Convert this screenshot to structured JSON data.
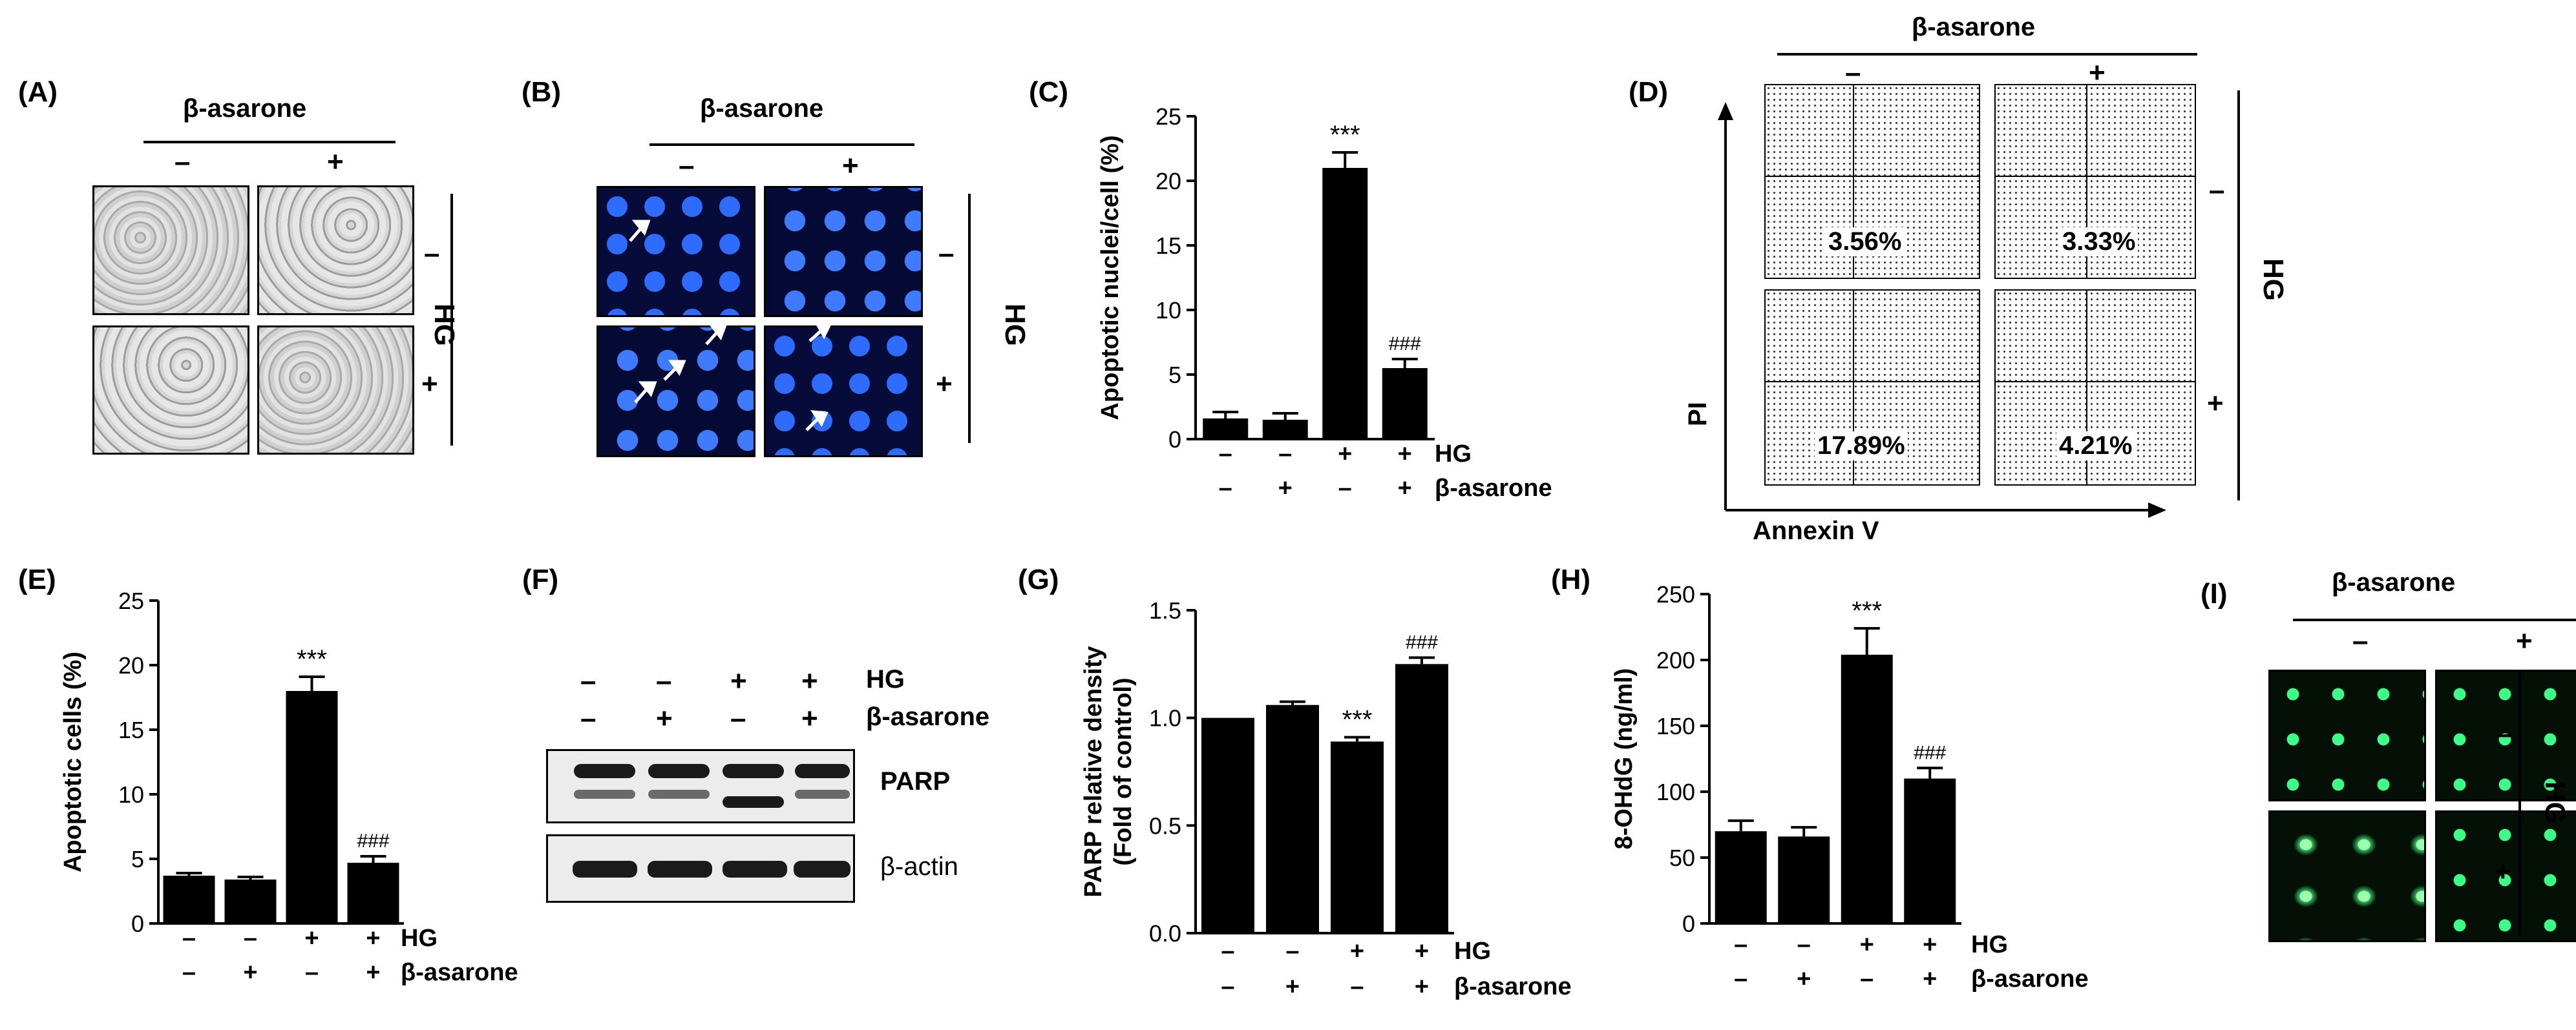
{
  "labels": {
    "A": "(A)",
    "B": "(B)",
    "C": "(C)",
    "D": "(D)",
    "E": "(E)",
    "F": "(F)",
    "G": "(G)",
    "H": "(H)",
    "I": "(I)"
  },
  "common": {
    "beta": "β-asarone",
    "hg": "HG",
    "minus": "–",
    "plus": "+"
  },
  "flow": {
    "xlabel": "Annexin V",
    "ylabel": "PI",
    "values": [
      "3.56%",
      "3.33%",
      "17.89%",
      "4.21%"
    ]
  },
  "blot": {
    "protein": "PARP",
    "loading": "β-actin"
  },
  "chart_data": [
    {
      "id": "C",
      "type": "bar",
      "categories": [
        "Ctrl",
        "β-asarone",
        "HG",
        "HG+β-asarone"
      ],
      "values": [
        1.6,
        1.5,
        21.0,
        5.5
      ],
      "errors": [
        0.5,
        0.5,
        1.2,
        0.7
      ],
      "sig": [
        "",
        "",
        "***",
        "###"
      ],
      "ylabel": "Apoptotic nuclei/cell (%)",
      "ylim": [
        0,
        25
      ],
      "yticks": [
        "0",
        "5",
        "10",
        "15",
        "20",
        "25"
      ]
    },
    {
      "id": "E",
      "type": "bar",
      "categories": [
        "Ctrl",
        "β-asarone",
        "HG",
        "HG+β-asarone"
      ],
      "values": [
        3.7,
        3.4,
        18.0,
        4.7
      ],
      "errors": [
        0.2,
        0.2,
        1.1,
        0.5
      ],
      "sig": [
        "",
        "",
        "***",
        "###"
      ],
      "ylabel": "Apoptotic cells (%)",
      "ylim": [
        0,
        25
      ],
      "yticks": [
        "0",
        "5",
        "10",
        "15",
        "20",
        "25"
      ]
    },
    {
      "id": "G",
      "type": "bar",
      "categories": [
        "Ctrl",
        "β-asarone",
        "HG",
        "HG+β-asarone"
      ],
      "values": [
        1.0,
        1.06,
        0.89,
        1.25
      ],
      "errors": [
        0,
        0.015,
        0.02,
        0.03
      ],
      "sig": [
        "",
        "",
        "***",
        "###"
      ],
      "ylabel": [
        "PARP relative density",
        "(Fold of control)"
      ],
      "ylim": [
        0,
        1.5
      ],
      "yticks": [
        "0.0",
        "0.5",
        "1.0",
        "1.5"
      ]
    },
    {
      "id": "H",
      "type": "bar",
      "categories": [
        "Ctrl",
        "β-asarone",
        "HG",
        "HG+β-asarone"
      ],
      "values": [
        70,
        66,
        204,
        110
      ],
      "errors": [
        8,
        7,
        20,
        8
      ],
      "sig": [
        "",
        "",
        "***",
        "###"
      ],
      "ylabel": "8-OHdG (ng/ml)",
      "ylim": [
        0,
        250
      ],
      "yticks": [
        "0",
        "50",
        "100",
        "150",
        "200",
        "250"
      ]
    }
  ]
}
